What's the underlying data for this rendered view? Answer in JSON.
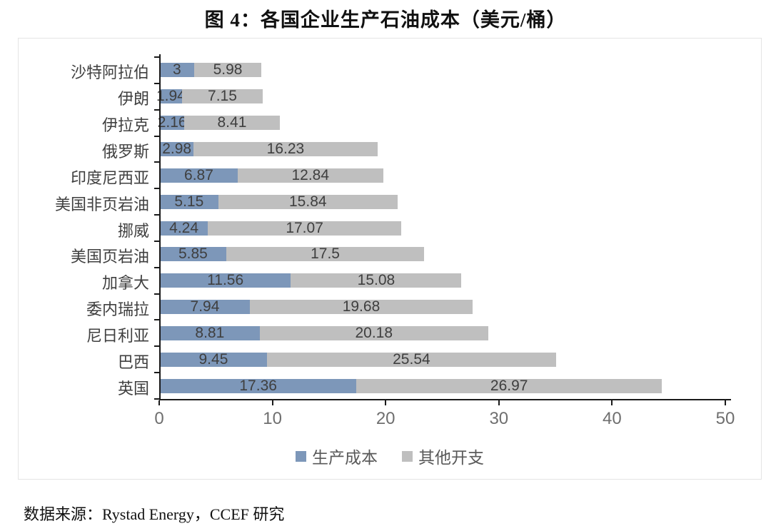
{
  "title": "图 4：各国企业生产石油成本（美元/桶）",
  "source": "数据来源：Rystad Energy，CCEF 研究",
  "colors": {
    "production_cost": "#7D97B9",
    "other_expense": "#BFBFBF",
    "axis_line": "#1a1a1a",
    "tick_label": "#6f6f6f",
    "data_label": "#3f3f3f"
  },
  "chart_data": {
    "type": "bar",
    "orientation": "horizontal",
    "stacked": true,
    "title": "图 4：各国企业生产石油成本（美元/桶）",
    "categories": [
      "沙特阿拉伯",
      "伊朗",
      "伊拉克",
      "俄罗斯",
      "印度尼西亚",
      "美国非页岩油",
      "挪威",
      "美国页岩油",
      "加拿大",
      "委内瑞拉",
      "尼日利亚",
      "巴西",
      "英国"
    ],
    "series": [
      {
        "name": "生产成本",
        "color": "#7D97B9",
        "values": [
          3,
          1.94,
          2.16,
          2.98,
          6.87,
          5.15,
          4.24,
          5.85,
          11.56,
          7.94,
          8.81,
          9.45,
          17.36
        ]
      },
      {
        "name": "其他开支",
        "color": "#BFBFBF",
        "values": [
          5.98,
          7.15,
          8.41,
          16.23,
          12.84,
          15.84,
          17.07,
          17.5,
          15.08,
          19.68,
          20.18,
          25.54,
          26.97
        ]
      }
    ],
    "xlabel": "",
    "ylabel": "",
    "xlim": [
      0,
      50
    ],
    "xticks": [
      0,
      10,
      20,
      30,
      40,
      50
    ],
    "grid": false,
    "legend_position": "bottom",
    "data_labels": true
  }
}
